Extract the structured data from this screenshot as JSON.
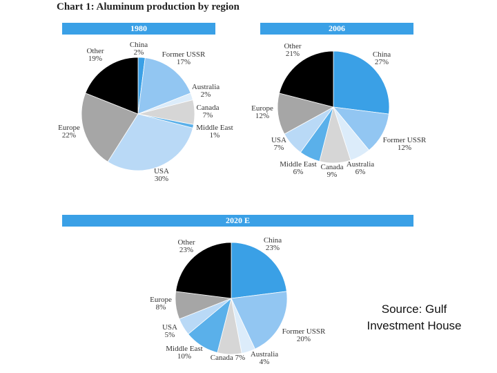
{
  "title": "Chart 1: Aluminum production by region",
  "source": [
    "Source: Gulf",
    "Investment House"
  ],
  "chart_data": [
    {
      "type": "pie",
      "title": "1980",
      "slices": [
        {
          "label": "China",
          "value": 2,
          "text": "2%",
          "color": "#3aa0e6"
        },
        {
          "label": "Former USSR",
          "value": 17,
          "text": "17%",
          "color": "#92c6f2"
        },
        {
          "label": "Australia",
          "value": 2,
          "text": "2%",
          "color": "#dcecfa"
        },
        {
          "label": "Canada",
          "value": 7,
          "text": "7%",
          "color": "#d6d6d6"
        },
        {
          "label": "Middle East",
          "value": 1,
          "text": "1%",
          "color": "#5ab0ea"
        },
        {
          "label": "USA",
          "value": 30,
          "text": "30%",
          "color": "#b9d9f6"
        },
        {
          "label": "Europe",
          "value": 22,
          "text": "22%",
          "color": "#a6a6a6"
        },
        {
          "label": "Other",
          "value": 19,
          "text": "19%",
          "color": "#000000"
        }
      ]
    },
    {
      "type": "pie",
      "title": "2006",
      "slices": [
        {
          "label": "China",
          "value": 27,
          "text": "27%",
          "color": "#3aa0e6"
        },
        {
          "label": "Former USSR",
          "value": 12,
          "text": "12%",
          "color": "#92c6f2"
        },
        {
          "label": "Australia",
          "value": 6,
          "text": "6%",
          "color": "#dcecfa"
        },
        {
          "label": "Canada",
          "value": 9,
          "text": "9%",
          "color": "#d6d6d6"
        },
        {
          "label": "Middle East",
          "value": 6,
          "text": "6%",
          "color": "#5ab0ea"
        },
        {
          "label": "USA",
          "value": 7,
          "text": "7%",
          "color": "#b9d9f6"
        },
        {
          "label": "Europe",
          "value": 12,
          "text": "12%",
          "color": "#a6a6a6"
        },
        {
          "label": "Other",
          "value": 21,
          "text": "21%",
          "color": "#000000"
        }
      ]
    },
    {
      "type": "pie",
      "title": "2020 E",
      "slices": [
        {
          "label": "China",
          "value": 23,
          "text": "23%",
          "color": "#3aa0e6"
        },
        {
          "label": "Former USSR",
          "value": 20,
          "text": "20%",
          "color": "#92c6f2"
        },
        {
          "label": "Australia",
          "value": 4,
          "text": "4%",
          "color": "#dcecfa"
        },
        {
          "label": "Canada",
          "value": 7,
          "text": "Canada 7%",
          "color": "#d6d6d6"
        },
        {
          "label": "Middle East",
          "value": 10,
          "text": "10%",
          "color": "#5ab0ea"
        },
        {
          "label": "USA",
          "value": 5,
          "text": "5%",
          "color": "#b9d9f6"
        },
        {
          "label": "Europe",
          "value": 8,
          "text": "8%",
          "color": "#a6a6a6"
        },
        {
          "label": "Other",
          "value": 23,
          "text": "23%",
          "color": "#000000"
        }
      ]
    }
  ]
}
